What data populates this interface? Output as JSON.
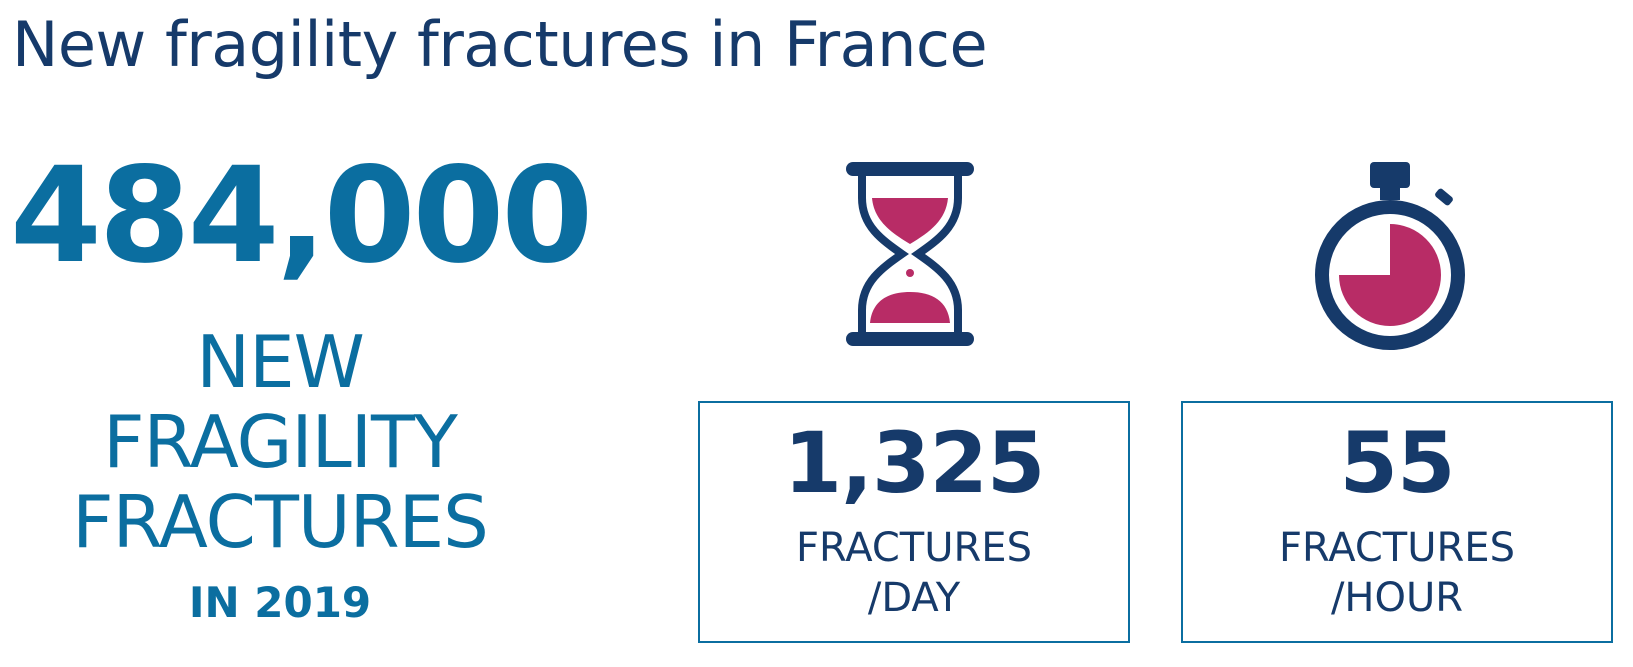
{
  "title": "New fragility fractures in France",
  "main_stat": {
    "value": "484,000",
    "label_lines": [
      "NEW",
      "FRAGILITY",
      "FRACTURES"
    ],
    "year_label": "IN 2019"
  },
  "stats": [
    {
      "icon": "hourglass-icon",
      "value": "1,325",
      "label_lines": [
        "FRACTURES",
        "/DAY"
      ]
    },
    {
      "icon": "stopwatch-icon",
      "value": "55",
      "label_lines": [
        "FRACTURES",
        "/HOUR"
      ]
    }
  ],
  "colors": {
    "title": "#163a6a",
    "accent_blue": "#0b6ea0",
    "navy": "#163a6a",
    "magenta": "#b82c66",
    "box_border": "#0b6ea0"
  }
}
